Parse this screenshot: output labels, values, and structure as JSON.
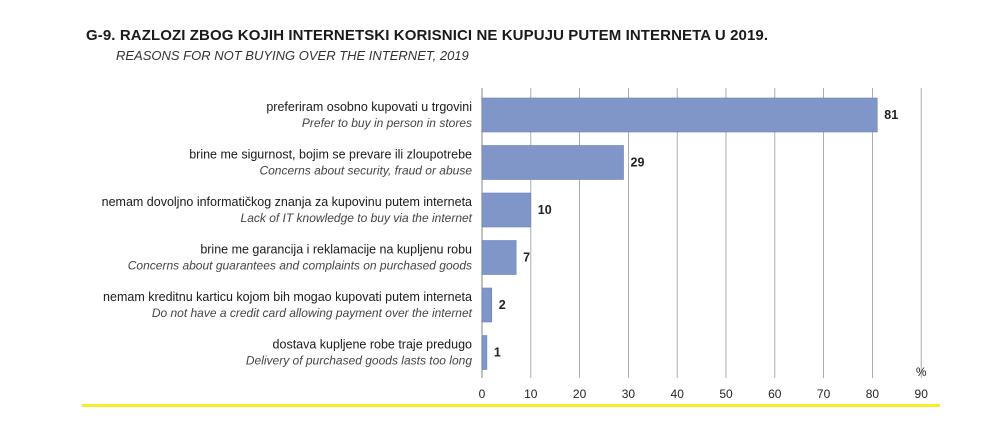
{
  "figure": {
    "title": "G-9. RAZLOZI ZBOG KOJIH INTERNETSKI KORISNICI NE KUPUJU PUTEM INTERNETA U 2019.",
    "subtitle": "REASONS FOR NOT BUYING OVER THE INTERNET, 2019"
  },
  "colors": {
    "bar": "#8096c8",
    "bar_stroke": "#6b82b8",
    "grid": "#9a9a9a",
    "rule": "#f7ec2a"
  },
  "chart_data": {
    "type": "bar",
    "orientation": "horizontal",
    "categories": [
      {
        "label": "preferiram osobno kupovati u trgovini",
        "label_en": "Prefer to buy in person in stores"
      },
      {
        "label": "brine me sigurnost, bojim se prevare ili zloupotrebe",
        "label_en": "Concerns about security, fraud or abuse"
      },
      {
        "label": "nemam dovoljno informatičkog znanja za kupovinu putem interneta",
        "label_en": "Lack of IT knowledge to buy via the internet"
      },
      {
        "label": "brine me garancija i reklamacije na kupljenu robu",
        "label_en": "Concerns about guarantees and complaints on purchased goods"
      },
      {
        "label": "nemam kreditnu karticu kojom bih mogao kupovati putem interneta",
        "label_en": "Do not have a credit card allowing payment over the internet"
      },
      {
        "label": "dostava kupljene robe traje predugo",
        "label_en": "Delivery of purchased goods lasts too long"
      }
    ],
    "values": [
      81,
      29,
      10,
      7,
      2,
      1
    ],
    "xlabel": "%",
    "xlim": [
      0,
      90
    ],
    "xticks": [
      0,
      10,
      20,
      30,
      40,
      50,
      60,
      70,
      80,
      90
    ],
    "grid": true,
    "legend": "none"
  }
}
